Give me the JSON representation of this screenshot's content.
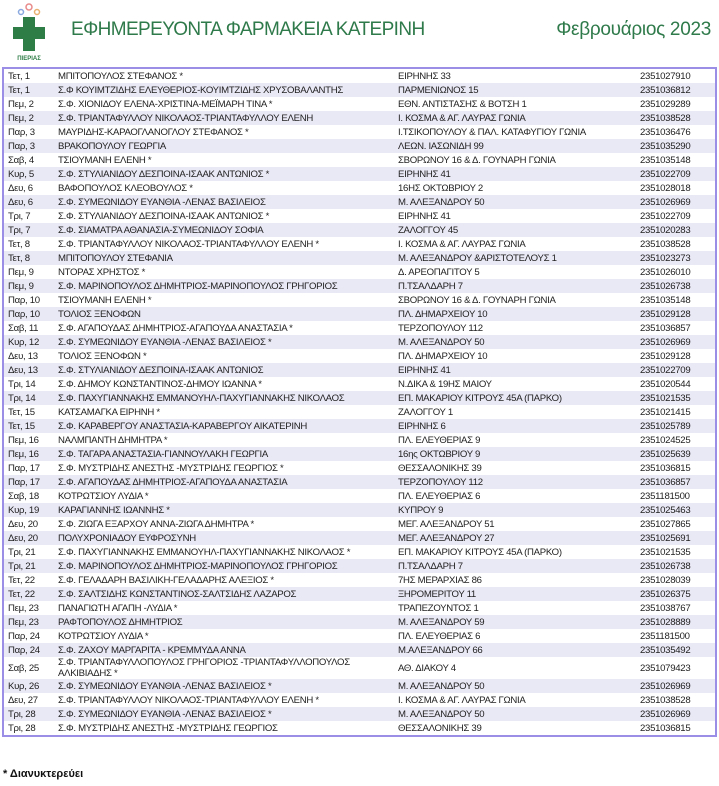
{
  "header": {
    "logo_text": "ΠΙΕΡΙΑΣ",
    "title": "ΕΦΗΜΕΡΕΥΟΝΤΑ ΦΑΡΜΑΚΕΙΑ ΚΑΤΕΡΙΝΗ",
    "month": "Φεβρουάριος 2023",
    "accent_color": "#2f7a4a",
    "border_color": "#9b8ee6"
  },
  "rows": [
    {
      "day": "Τετ, 1",
      "name": "ΜΠΙΤΟΠΟΥΛΟΣ ΣΤΕΦΑΝΟΣ *",
      "address": "ΕΙΡΗΝΗΣ 33",
      "phone": "2351027910"
    },
    {
      "day": "Τετ, 1",
      "name": "Σ.Φ ΚΟΥΙΜΤΖΙΔΗΣ ΕΛΕΥΘΕΡΙΟΣ-ΚΟΥΙΜΤΖΙΔΗΣ ΧΡΥΣΟΒΑΛΑΝΤΗΣ",
      "address": "ΠΑΡΜΕΝΙΩΝΟΣ 15",
      "phone": "2351036812"
    },
    {
      "day": "Πεμ, 2",
      "name": "Σ.Φ. ΧΙΟΝΙΔΟΥ ΕΛΕΝΑ-ΧΡΙΣΤΙΝΑ-ΜΕΪΜΑΡΗ ΤΙΝΑ *",
      "address": "ΕΘΝ. ΑΝΤΙΣΤΑΣΗΣ & ΒΟΤΣΗ 1",
      "phone": "2351029289"
    },
    {
      "day": "Πεμ, 2",
      "name": "Σ.Φ. ΤΡΙΑΝΤΑΦΥΛΛΟΥ ΝΙΚΟΛΑΟΣ-ΤΡΙΑΝΤΑΦΥΛΛΟΥ ΕΛΕΝΗ",
      "address": "Ι. ΚΟΣΜΑ & ΑΓ. ΛΑΥΡΑΣ ΓΩΝΙΑ",
      "phone": "2351038528"
    },
    {
      "day": "Παρ, 3",
      "name": "ΜΑΥΡΙΔΗΣ-ΚΑΡΑΟΓΛΑΝΟΓΛΟΥ ΣΤΕΦΑΝΟΣ *",
      "address": "Ι.ΤΣΙΚΟΠΟΥΛΟΥ & ΠΑΛ. ΚΑΤΑΦΥΓΙΟΥ ΓΩΝΙΑ",
      "phone": "2351036476"
    },
    {
      "day": "Παρ, 3",
      "name": "ΒΡΑΚΟΠΟΥΛΟΥ ΓΕΩΡΓΙΑ",
      "address": "ΛΕΩΝ. ΙΑΣΩΝΙΔΗ 99",
      "phone": "2351035290"
    },
    {
      "day": "Σαβ, 4",
      "name": "ΤΣΙΟΥΜΑΝΗ ΕΛΕΝΗ *",
      "address": "ΣΒΟΡΩΝΟΥ 16 & Δ. ΓΟΥΝΑΡΗ ΓΩΝΙΑ",
      "phone": "2351035148"
    },
    {
      "day": "Κυρ, 5",
      "name": "Σ.Φ. ΣΤΥΛΙΑΝΙΔΟΥ ΔΕΣΠΟΙΝΑ-ΙΣΑΑΚ ΑΝΤΩΝΙΟΣ *",
      "address": "ΕΙΡΗΝΗΣ 41",
      "phone": "2351022709"
    },
    {
      "day": "Δευ, 6",
      "name": "ΒΑΦΟΠΟΥΛΟΣ ΚΛΕΟΒΟΥΛΟΣ *",
      "address": "16ΗΣ ΟΚΤΩΒΡΙΟΥ 2",
      "phone": "2351028018"
    },
    {
      "day": "Δευ, 6",
      "name": "Σ.Φ. ΣΥΜΕΩΝΙΔΟΥ ΕΥΑΝΘΙΑ -ΛΕΝΑΣ ΒΑΣΙΛΕΙΟΣ",
      "address": "Μ. ΑΛΕΞΑΝΔΡΟΥ 50",
      "phone": "2351026969"
    },
    {
      "day": "Τρι, 7",
      "name": "Σ.Φ. ΣΤΥΛΙΑΝΙΔΟΥ ΔΕΣΠΟΙΝΑ-ΙΣΑΑΚ ΑΝΤΩΝΙΟΣ *",
      "address": "ΕΙΡΗΝΗΣ 41",
      "phone": "2351022709"
    },
    {
      "day": "Τρι, 7",
      "name": "Σ.Φ. ΣΙΑΜΑΤΡΑ ΑΘΑΝΑΣΙΑ-ΣΥΜΕΩΝΙΔΟΥ ΣΟΦΙΑ",
      "address": "ΖΑΛΟΓΓΟΥ 45",
      "phone": "2351020283"
    },
    {
      "day": "Τετ, 8",
      "name": "Σ.Φ. ΤΡΙΑΝΤΑΦΥΛΛΟΥ ΝΙΚΟΛΑΟΣ-ΤΡΙΑΝΤΑΦΥΛΛΟΥ ΕΛΕΝΗ *",
      "address": "Ι. ΚΟΣΜΑ & ΑΓ. ΛΑΥΡΑΣ ΓΩΝΙΑ",
      "phone": "2351038528"
    },
    {
      "day": "Τετ, 8",
      "name": "ΜΠΙΤΟΠΟΥΛΟΥ ΣΤΕΦΑΝΙΑ",
      "address": "Μ. ΑΛΕΞΑΝΔΡΟΥ &ΑΡΙΣΤΟΤΕΛΟΥΣ 1",
      "phone": "2351023273"
    },
    {
      "day": "Πεμ, 9",
      "name": "ΝΤΟΡΑΣ ΧΡΗΣΤΟΣ *",
      "address": "Δ. ΑΡΕΟΠΑΓΙΤΟΥ 5",
      "phone": "2351026010"
    },
    {
      "day": "Πεμ, 9",
      "name": "Σ.Φ. ΜΑΡΙΝΟΠΟΥΛΟΣ ΔΗΜΗΤΡΙΟΣ-ΜΑΡΙΝΟΠΟΥΛΟΣ ΓΡΗΓΟΡΙΟΣ",
      "address": "Π.ΤΣΑΛΔΑΡΗ 7",
      "phone": "2351026738"
    },
    {
      "day": "Παρ, 10",
      "name": "ΤΣΙΟΥΜΑΝΗ ΕΛΕΝΗ *",
      "address": "ΣΒΟΡΩΝΟΥ 16 & Δ. ΓΟΥΝΑΡΗ ΓΩΝΙΑ",
      "phone": "2351035148"
    },
    {
      "day": "Παρ, 10",
      "name": "ΤΟΛΙΟΣ ΞΕΝΟΦΩΝ",
      "address": "ΠΛ. ΔΗΜΑΡΧΕΙΟΥ 10",
      "phone": "2351029128"
    },
    {
      "day": "Σαβ, 11",
      "name": "Σ.Φ. ΑΓΑΠΟΥΔΑΣ ΔΗΜΗΤΡΙΟΣ-ΑΓΑΠΟΥΔΑ ΑΝΑΣΤΑΣΙΑ *",
      "address": "ΤΕΡΖΟΠΟΥΛΟΥ 112",
      "phone": "2351036857"
    },
    {
      "day": "Κυρ, 12",
      "name": "Σ.Φ. ΣΥΜΕΩΝΙΔΟΥ ΕΥΑΝΘΙΑ -ΛΕΝΑΣ ΒΑΣΙΛΕΙΟΣ *",
      "address": "Μ. ΑΛΕΞΑΝΔΡΟΥ 50",
      "phone": "2351026969"
    },
    {
      "day": "Δευ, 13",
      "name": "ΤΟΛΙΟΣ ΞΕΝΟΦΩΝ *",
      "address": "ΠΛ. ΔΗΜΑΡΧΕΙΟΥ 10",
      "phone": "2351029128"
    },
    {
      "day": "Δευ, 13",
      "name": "Σ.Φ. ΣΤΥΛΙΑΝΙΔΟΥ ΔΕΣΠΟΙΝΑ-ΙΣΑΑΚ ΑΝΤΩΝΙΟΣ",
      "address": "ΕΙΡΗΝΗΣ 41",
      "phone": "2351022709"
    },
    {
      "day": "Τρι, 14",
      "name": "Σ.Φ. ΔΗΜΟΥ ΚΩΝΣΤΑΝΤΙΝΟΣ-ΔΗΜΟΥ ΙΩΑΝΝΑ *",
      "address": "Ν.ΔΙΚΑ & 19ΗΣ ΜΑΙΟΥ",
      "phone": "2351020544"
    },
    {
      "day": "Τρι, 14",
      "name": "Σ.Φ. ΠΑΧΥΓΙΑΝΝΑΚΗΣ ΕΜΜΑΝΟΥΗΛ-ΠΑΧΥΓΙΑΝΝΑΚΗΣ ΝΙΚΟΛΑΟΣ",
      "address": "ΕΠ. ΜΑΚΑΡΙΟΥ ΚΙΤΡΟΥΣ 45Α (ΠΑΡΚΟ)",
      "phone": "2351021535"
    },
    {
      "day": "Τετ, 15",
      "name": "ΚΑΤΣΑΜΑΓΚΑ ΕΙΡΗΝΗ *",
      "address": "ΖΑΛΟΓΓΟΥ 1",
      "phone": "2351021415"
    },
    {
      "day": "Τετ, 15",
      "name": "Σ.Φ. ΚΑΡΑΒΕΡΓΟΥ ΑΝΑΣΤΑΣΙΑ-ΚΑΡΑΒΕΡΓΟΥ ΑΙΚΑΤΕΡΙΝΗ",
      "address": "ΕΙΡΗΝΗΣ 6",
      "phone": "2351025789"
    },
    {
      "day": "Πεμ, 16",
      "name": "ΝΑΛΜΠΑΝΤΗ ΔΗΜΗΤΡΑ *",
      "address": "ΠΛ. ΕΛΕΥΘΕΡΙΑΣ 9",
      "phone": "2351024525"
    },
    {
      "day": "Πεμ, 16",
      "name": "Σ.Φ. ΤΑΓΑΡΑ ΑΝΑΣΤΑΣΙΑ-ΓΙΑΝΝΟΥΛΑΚΗ ΓΕΩΡΓΙΑ",
      "address": "16ης ΟΚΤΩΒΡΙΟΥ 9",
      "phone": "2351025639"
    },
    {
      "day": "Παρ, 17",
      "name": "Σ.Φ. ΜΥΣΤΡΙΔΗΣ ΑΝΕΣΤΗΣ -ΜΥΣΤΡΙΔΗΣ ΓΕΩΡΓΙΟΣ *",
      "address": "ΘΕΣΣΑΛΟΝΙΚΗΣ 39",
      "phone": "2351036815"
    },
    {
      "day": "Παρ, 17",
      "name": "Σ.Φ. ΑΓΑΠΟΥΔΑΣ ΔΗΜΗΤΡΙΟΣ-ΑΓΑΠΟΥΔΑ ΑΝΑΣΤΑΣΙΑ",
      "address": "ΤΕΡΖΟΠΟΥΛΟΥ 112",
      "phone": "2351036857"
    },
    {
      "day": "Σαβ, 18",
      "name": "ΚΟΤΡΩΤΣΙΟΥ ΛΥΔΙΑ *",
      "address": "ΠΛ. ΕΛΕΥΘΕΡΙΑΣ 6",
      "phone": "2351181500"
    },
    {
      "day": "Κυρ, 19",
      "name": "ΚΑΡΑΓΙΑΝΝΗΣ ΙΩΑΝΝΗΣ *",
      "address": "ΚΥΠΡΟΥ 9",
      "phone": "2351025463"
    },
    {
      "day": "Δευ, 20",
      "name": "Σ.Φ. ΖΙΩΓΑ ΕΞΑΡΧΟΥ ΑΝΝΑ-ΖΙΩΓΑ ΔΗΜΗΤΡΑ *",
      "address": "ΜΕΓ. ΑΛΕΞΑΝΔΡΟΥ 51",
      "phone": "2351027865"
    },
    {
      "day": "Δευ, 20",
      "name": "ΠΟΛΥΧΡΟΝΙΑΔΟΥ ΕΥΦΡΟΣΥΝΗ",
      "address": "ΜΕΓ. ΑΛΕΞΑΝΔΡΟΥ 27",
      "phone": "2351025691"
    },
    {
      "day": "Τρι, 21",
      "name": "Σ.Φ. ΠΑΧΥΓΙΑΝΝΑΚΗΣ ΕΜΜΑΝΟΥΗΛ-ΠΑΧΥΓΙΑΝΝΑΚΗΣ ΝΙΚΟΛΑΟΣ *",
      "address": "ΕΠ. ΜΑΚΑΡΙΟΥ ΚΙΤΡΟΥΣ 45Α (ΠΑΡΚΟ)",
      "phone": "2351021535"
    },
    {
      "day": "Τρι, 21",
      "name": "Σ.Φ. ΜΑΡΙΝΟΠΟΥΛΟΣ ΔΗΜΗΤΡΙΟΣ-ΜΑΡΙΝΟΠΟΥΛΟΣ ΓΡΗΓΟΡΙΟΣ",
      "address": "Π.ΤΣΑΛΔΑΡΗ 7",
      "phone": "2351026738"
    },
    {
      "day": "Τετ, 22",
      "name": "Σ.Φ. ΓΕΛΑΔΑΡΗ ΒΑΣΙΛΙΚΗ-ΓΕΛΑΔΑΡΗΣ ΑΛΕΞΙΟΣ *",
      "address": "7ΗΣ ΜΕΡΑΡΧΙΑΣ 86",
      "phone": "2351028039"
    },
    {
      "day": "Τετ, 22",
      "name": "Σ.Φ. ΣΑΛΤΣΙΔΗΣ ΚΩΝΣΤΑΝΤΙΝΟΣ-ΣΑΛΤΣΙΔΗΣ ΛΑΖΑΡΟΣ",
      "address": "ΞΗΡΟΜΕΡΙΤΟΥ 11",
      "phone": "2351026375"
    },
    {
      "day": "Πεμ, 23",
      "name": "ΠΑΝΑΓΙΩΤΗ ΑΓΑΠΗ -ΛΥΔΙΑ *",
      "address": "ΤΡΑΠΕΖΟΥΝΤΟΣ 1",
      "phone": "2351038767"
    },
    {
      "day": "Πεμ, 23",
      "name": "ΡΑΦΤΟΠΟΥΛΟΣ ΔΗΜΗΤΡΙΟΣ",
      "address": "Μ. ΑΛΕΞΑΝΔΡΟΥ 59",
      "phone": "2351028889"
    },
    {
      "day": "Παρ, 24",
      "name": "ΚΟΤΡΩΤΣΙΟΥ ΛΥΔΙΑ *",
      "address": "ΠΛ. ΕΛΕΥΘΕΡΙΑΣ 6",
      "phone": "2351181500"
    },
    {
      "day": "Παρ, 24",
      "name": "Σ.Φ. ΖΑΧΟΥ ΜΑΡΓΑΡΙΤΑ - ΚΡΕΜΜΥΔΑ ΑΝΝΑ",
      "address": "Μ.ΑΛΕΞΑΝΔΡΟΥ 66",
      "phone": "2351035492"
    },
    {
      "day": "Σαβ, 25",
      "name": "Σ.Φ. ΤΡΙΑΝΤΑΦΥΛΛΟΠΟΥΛΟΣ ΓΡΗΓΟΡΙΟΣ -ΤΡΙΑΝΤΑΦΥΛΛΟΠΟΥΛΟΣ ΑΛΚΙΒΙΑΔΗΣ *",
      "address": "ΑΘ. ΔΙΑΚΟΥ 4",
      "phone": "2351079423"
    },
    {
      "day": "Κυρ, 26",
      "name": "Σ.Φ. ΣΥΜΕΩΝΙΔΟΥ ΕΥΑΝΘΙΑ -ΛΕΝΑΣ ΒΑΣΙΛΕΙΟΣ *",
      "address": "Μ. ΑΛΕΞΑΝΔΡΟΥ 50",
      "phone": "2351026969"
    },
    {
      "day": "Δευ, 27",
      "name": "Σ.Φ. ΤΡΙΑΝΤΑΦΥΛΛΟΥ ΝΙΚΟΛΑΟΣ-ΤΡΙΑΝΤΑΦΥΛΛΟΥ ΕΛΕΝΗ *",
      "address": "Ι. ΚΟΣΜΑ & ΑΓ. ΛΑΥΡΑΣ ΓΩΝΙΑ",
      "phone": "2351038528"
    },
    {
      "day": "Τρι, 28",
      "name": "Σ.Φ. ΣΥΜΕΩΝΙΔΟΥ ΕΥΑΝΘΙΑ -ΛΕΝΑΣ ΒΑΣΙΛΕΙΟΣ *",
      "address": "Μ. ΑΛΕΞΑΝΔΡΟΥ 50",
      "phone": "2351026969"
    },
    {
      "day": "Τρι, 28",
      "name": "Σ.Φ. ΜΥΣΤΡΙΔΗΣ ΑΝΕΣΤΗΣ -ΜΥΣΤΡΙΔΗΣ ΓΕΩΡΓΙΟΣ",
      "address": "ΘΕΣΣΑΛΟΝΙΚΗΣ 39",
      "phone": "2351036815"
    }
  ],
  "footnote": "* Διανυκτερεύει"
}
